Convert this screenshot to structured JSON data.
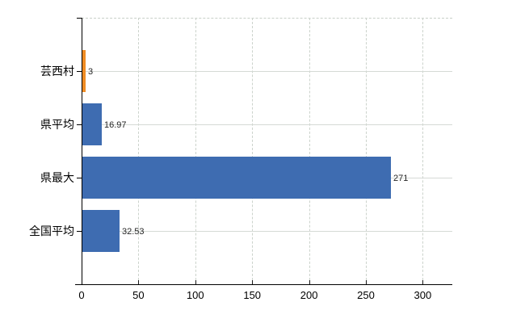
{
  "chart_data": {
    "type": "bar",
    "orientation": "horizontal",
    "title": "",
    "categories": [
      "芸西村",
      "県平均",
      "県最大",
      "全国平均"
    ],
    "values": [
      3,
      16.97,
      271,
      32.53
    ],
    "value_labels": [
      "3",
      "16.97",
      "271",
      "32.53"
    ],
    "bar_colors": [
      "#ef8c24",
      "#3e6cb1",
      "#3e6cb1",
      "#3e6cb1"
    ],
    "x_tick_values": [
      0,
      50,
      100,
      150,
      200,
      250,
      300
    ],
    "x_tick_labels": [
      "0",
      "50",
      "100",
      "150",
      "200",
      "250",
      "300"
    ],
    "xlim": [
      0,
      326
    ],
    "grid": true,
    "legend": "none"
  },
  "colors": {
    "background": "#ffffff",
    "bar_blue": "#3e6cb1",
    "bar_orange": "#ef8c24",
    "gridline": "#d5dad5",
    "axis": "#000000",
    "category_text": "#000000",
    "value_text": "#262626"
  }
}
